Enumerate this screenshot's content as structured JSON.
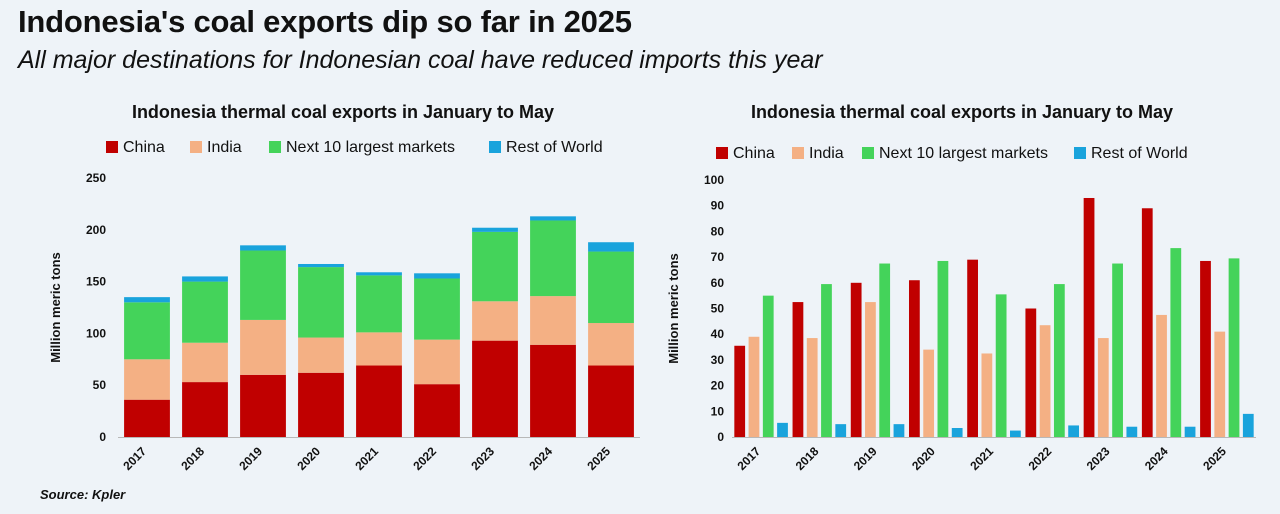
{
  "header": {
    "title": "Indonesia's coal exports dip so far in 2025",
    "subtitle": "All major destinations for Indonesian coal have reduced imports this year"
  },
  "source": "Source: Kpler",
  "colors": {
    "China": "#c00000",
    "India": "#f4b084",
    "Next 10 largest markets": "#44d35a",
    "Rest of World": "#19a3dc"
  },
  "chart_data": [
    {
      "type": "bar",
      "stacked": true,
      "title": "Indonesia thermal coal exports in January to May",
      "ylabel": "Million meric tons",
      "xlabel": "",
      "ylim": [
        0,
        250
      ],
      "yticks": [
        0,
        50,
        100,
        150,
        200,
        250
      ],
      "grid": false,
      "legend": "top",
      "categories": [
        "2017",
        "2018",
        "2019",
        "2020",
        "2021",
        "2022",
        "2023",
        "2024",
        "2025"
      ],
      "series": [
        {
          "name": "China",
          "values": [
            36,
            53,
            60,
            62,
            69,
            51,
            93,
            89,
            69
          ]
        },
        {
          "name": "India",
          "values": [
            39,
            38,
            53,
            34,
            32,
            43,
            38,
            47,
            41
          ]
        },
        {
          "name": "Next 10 largest markets",
          "values": [
            55,
            59,
            67,
            68,
            55,
            59,
            67,
            73,
            69
          ]
        },
        {
          "name": "Rest of World",
          "values": [
            5,
            5,
            5,
            3,
            3,
            5,
            4,
            4,
            9
          ]
        }
      ]
    },
    {
      "type": "bar",
      "stacked": false,
      "title": "Indonesia thermal coal exports in January to May",
      "ylabel": "Million meric tons",
      "xlabel": "",
      "ylim": [
        0,
        100
      ],
      "yticks": [
        0,
        10,
        20,
        30,
        40,
        50,
        60,
        70,
        80,
        90,
        100
      ],
      "grid": false,
      "legend": "top",
      "categories": [
        "2017",
        "2018",
        "2019",
        "2020",
        "2021",
        "2022",
        "2023",
        "2024",
        "2025"
      ],
      "series": [
        {
          "name": "China",
          "values": [
            35.5,
            52.5,
            60,
            61,
            69,
            50,
            93,
            89,
            68.5
          ]
        },
        {
          "name": "India",
          "values": [
            39,
            38.5,
            52.5,
            34,
            32.5,
            43.5,
            38.5,
            47.5,
            41
          ]
        },
        {
          "name": "Next 10 largest markets",
          "values": [
            55,
            59.5,
            67.5,
            68.5,
            55.5,
            59.5,
            67.5,
            73.5,
            69.5
          ]
        },
        {
          "name": "Rest of World",
          "values": [
            5.5,
            5,
            5,
            3.5,
            2.5,
            4.5,
            4,
            4,
            9
          ]
        }
      ]
    }
  ]
}
